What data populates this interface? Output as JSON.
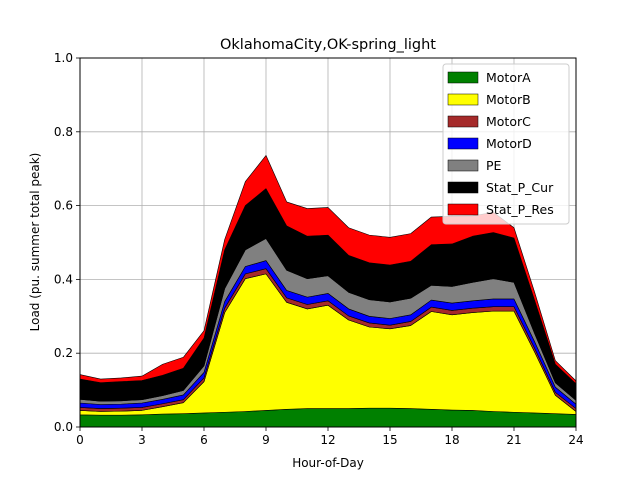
{
  "chart_data": {
    "type": "area",
    "stacked": true,
    "title": "OklahomaCity,OK-spring_light",
    "xlabel": "Hour-of-Day",
    "ylabel": "Load (pu. summer total peak)",
    "xlim": [
      0,
      24
    ],
    "ylim": [
      0,
      1.0
    ],
    "xticks": [
      "0",
      "3",
      "6",
      "9",
      "12",
      "15",
      "18",
      "21",
      "24"
    ],
    "yticks": [
      "0.0",
      "0.2",
      "0.4",
      "0.6",
      "0.8",
      "1.0"
    ],
    "grid": true,
    "legend_position": "upper-right",
    "x": [
      0,
      1,
      2,
      3,
      4,
      5,
      6,
      7,
      8,
      9,
      10,
      11,
      12,
      13,
      14,
      15,
      16,
      17,
      18,
      19,
      20,
      21,
      22,
      23,
      24
    ],
    "series": [
      {
        "name": "MotorA",
        "color": "#008000",
        "values": [
          0.033,
          0.032,
          0.032,
          0.033,
          0.035,
          0.036,
          0.038,
          0.04,
          0.042,
          0.045,
          0.048,
          0.05,
          0.05,
          0.05,
          0.051,
          0.051,
          0.05,
          0.048,
          0.046,
          0.045,
          0.042,
          0.04,
          0.038,
          0.036,
          0.034
        ]
      },
      {
        "name": "MotorB",
        "color": "#ffff00",
        "values": [
          0.012,
          0.01,
          0.011,
          0.012,
          0.02,
          0.03,
          0.085,
          0.27,
          0.36,
          0.37,
          0.29,
          0.27,
          0.28,
          0.24,
          0.22,
          0.215,
          0.225,
          0.265,
          0.258,
          0.265,
          0.272,
          0.274,
          0.165,
          0.05,
          0.008
        ]
      },
      {
        "name": "MotorC",
        "color": "#a52a2a",
        "values": [
          0.008,
          0.008,
          0.008,
          0.008,
          0.008,
          0.008,
          0.01,
          0.012,
          0.013,
          0.014,
          0.012,
          0.012,
          0.012,
          0.011,
          0.011,
          0.01,
          0.011,
          0.012,
          0.012,
          0.012,
          0.012,
          0.012,
          0.01,
          0.008,
          0.008
        ]
      },
      {
        "name": "MotorD",
        "color": "#0000ff",
        "values": [
          0.012,
          0.011,
          0.011,
          0.012,
          0.012,
          0.013,
          0.015,
          0.018,
          0.02,
          0.022,
          0.02,
          0.02,
          0.02,
          0.019,
          0.018,
          0.018,
          0.018,
          0.019,
          0.02,
          0.02,
          0.021,
          0.021,
          0.018,
          0.014,
          0.012
        ]
      },
      {
        "name": "PE",
        "color": "#808080",
        "values": [
          0.01,
          0.009,
          0.009,
          0.009,
          0.01,
          0.012,
          0.018,
          0.035,
          0.045,
          0.06,
          0.055,
          0.05,
          0.048,
          0.045,
          0.045,
          0.045,
          0.045,
          0.04,
          0.045,
          0.05,
          0.055,
          0.045,
          0.022,
          0.012,
          0.01
        ]
      },
      {
        "name": "Stat_P_Cur",
        "color": "#000000",
        "values": [
          0.055,
          0.05,
          0.052,
          0.052,
          0.055,
          0.06,
          0.075,
          0.105,
          0.12,
          0.135,
          0.12,
          0.115,
          0.11,
          0.1,
          0.1,
          0.1,
          0.1,
          0.11,
          0.115,
          0.125,
          0.125,
          0.12,
          0.09,
          0.05,
          0.045
        ]
      },
      {
        "name": "Stat_P_Res",
        "color": "#ff0000",
        "values": [
          0.012,
          0.01,
          0.01,
          0.012,
          0.03,
          0.03,
          0.02,
          0.028,
          0.065,
          0.09,
          0.065,
          0.075,
          0.075,
          0.075,
          0.075,
          0.075,
          0.075,
          0.075,
          0.075,
          0.055,
          0.055,
          0.028,
          0.022,
          0.01,
          0.008
        ]
      }
    ]
  }
}
